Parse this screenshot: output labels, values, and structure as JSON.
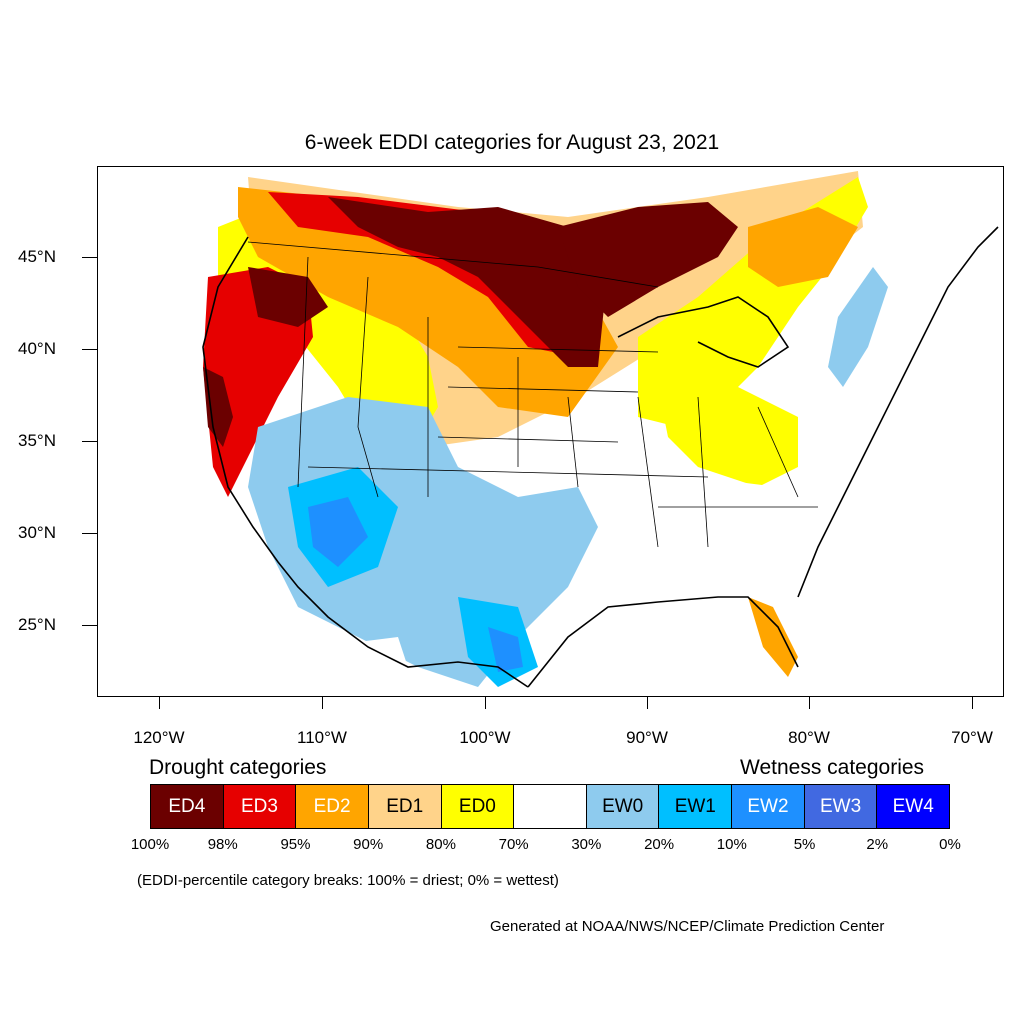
{
  "title": "6-week EDDI categories for August 23, 2021",
  "axes": {
    "lat_labels": [
      "45°N",
      "40°N",
      "35°N",
      "30°N",
      "25°N"
    ],
    "lon_labels": [
      "120°W",
      "110°W",
      "100°W",
      "90°W",
      "80°W",
      "70°W"
    ]
  },
  "legend": {
    "drought_heading": "Drought categories",
    "wetness_heading": "Wetness categories",
    "categories": [
      {
        "label": "ED4",
        "color": "#6b0000",
        "text_color": "#ffffff"
      },
      {
        "label": "ED3",
        "color": "#e60000",
        "text_color": "#ffffff"
      },
      {
        "label": "ED2",
        "color": "#ffa500",
        "text_color": "#ffffff"
      },
      {
        "label": "ED1",
        "color": "#ffd38a",
        "text_color": "#000000"
      },
      {
        "label": "ED0",
        "color": "#ffff00",
        "text_color": "#000000"
      },
      {
        "label": "",
        "color": "#ffffff",
        "text_color": "#000000"
      },
      {
        "label": "EW0",
        "color": "#8ecbee",
        "text_color": "#000000"
      },
      {
        "label": "EW1",
        "color": "#00bfff",
        "text_color": "#000000"
      },
      {
        "label": "EW2",
        "color": "#1e90ff",
        "text_color": "#ffffff"
      },
      {
        "label": "EW3",
        "color": "#4169e1",
        "text_color": "#ffffff"
      },
      {
        "label": "EW4",
        "color": "#0000ff",
        "text_color": "#ffffff"
      }
    ],
    "breaks": [
      "100%",
      "98%",
      "95%",
      "90%",
      "80%",
      "70%",
      "30%",
      "20%",
      "10%",
      "5%",
      "2%",
      "0%"
    ]
  },
  "note": "(EDDI-percentile category breaks: 100% = driest; 0% = wettest)",
  "credit": "Generated at NOAA/NWS/NCEP/Climate Prediction Center",
  "colors": {
    "ed4": "#6b0000",
    "ed3": "#e60000",
    "ed2": "#ffa500",
    "ed1": "#ffd38a",
    "ed0": "#ffff00",
    "ew0": "#8ecbee",
    "ew1": "#00bfff",
    "ew2": "#1e90ff",
    "ew3": "#4169e1",
    "ew4": "#0000ff"
  }
}
